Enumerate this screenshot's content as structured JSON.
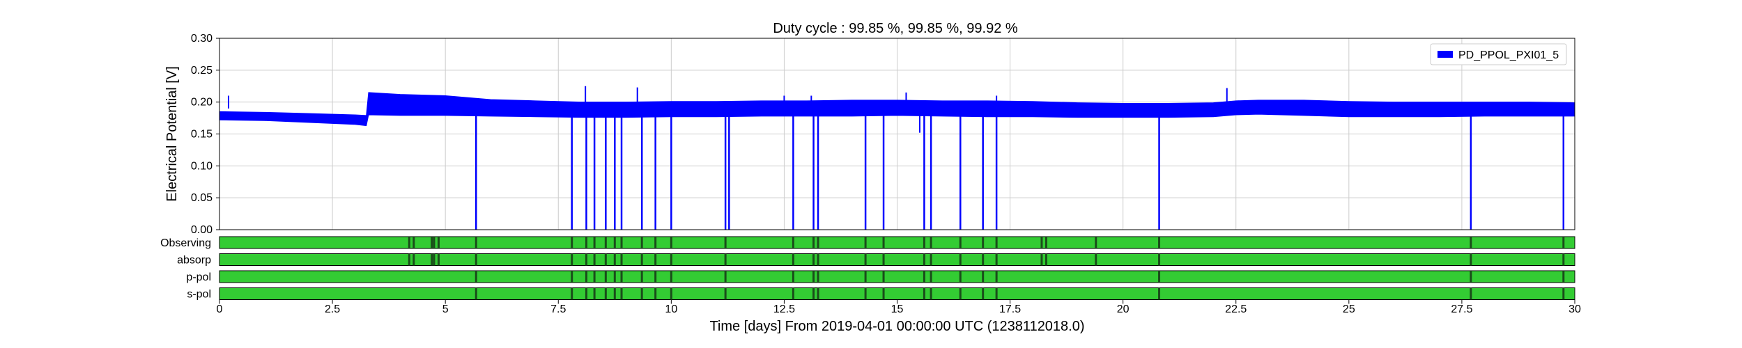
{
  "chart_data": {
    "type": "line",
    "title": "Duty cycle : 99.85 %, 99.85 %, 99.92 %",
    "xlabel": "Time [days] From 2019-04-01 00:00:00 UTC (1238112018.0)",
    "ylabel": "Electrical Potential [V]",
    "xlim": [
      0,
      30
    ],
    "ylim": [
      0,
      0.3
    ],
    "grid": true,
    "legend_position": "top-right",
    "x_ticks": [
      "0",
      "2.5",
      "5",
      "7.5",
      "10",
      "12.5",
      "15",
      "17.5",
      "20",
      "22.5",
      "25",
      "27.5",
      "30"
    ],
    "y_ticks": [
      "0.00",
      "0.05",
      "0.10",
      "0.15",
      "0.20",
      "0.25",
      "0.30"
    ],
    "colors": {
      "series": "#0000ff",
      "segment_on": "#33cc33",
      "segment_off": "#1a4d1a",
      "grid": "#cccccc"
    },
    "series": [
      {
        "name": "PD_PPOL_PXI01_5",
        "band": {
          "x": [
            0,
            1,
            2,
            3,
            3.25,
            3.3,
            4,
            5,
            6,
            7,
            8,
            9,
            10,
            11,
            12,
            13,
            14,
            15,
            16,
            17,
            18,
            19,
            20,
            21,
            22,
            22.5,
            23,
            24,
            25,
            26,
            27,
            28,
            29,
            30
          ],
          "upper": [
            0.185,
            0.184,
            0.182,
            0.18,
            0.179,
            0.215,
            0.212,
            0.21,
            0.204,
            0.202,
            0.2,
            0.2,
            0.201,
            0.201,
            0.202,
            0.202,
            0.203,
            0.203,
            0.202,
            0.202,
            0.201,
            0.199,
            0.198,
            0.198,
            0.199,
            0.202,
            0.203,
            0.203,
            0.201,
            0.2,
            0.2,
            0.2,
            0.2,
            0.199
          ],
          "lower": [
            0.172,
            0.171,
            0.168,
            0.165,
            0.163,
            0.18,
            0.179,
            0.179,
            0.178,
            0.177,
            0.176,
            0.176,
            0.177,
            0.177,
            0.178,
            0.178,
            0.178,
            0.179,
            0.178,
            0.177,
            0.177,
            0.176,
            0.176,
            0.176,
            0.177,
            0.18,
            0.181,
            0.179,
            0.177,
            0.177,
            0.177,
            0.178,
            0.178,
            0.178
          ]
        },
        "spikes": [
          {
            "x": 0.2,
            "y": 0.21
          },
          {
            "x": 8.1,
            "y": 0.225
          },
          {
            "x": 9.25,
            "y": 0.223
          },
          {
            "x": 12.5,
            "y": 0.21
          },
          {
            "x": 13.1,
            "y": 0.21
          },
          {
            "x": 15.2,
            "y": 0.215
          },
          {
            "x": 17.2,
            "y": 0.21
          },
          {
            "x": 22.3,
            "y": 0.222
          },
          {
            "x": 15.5,
            "y": 0.152
          },
          {
            "x": 14.7,
            "y": 0.16
          }
        ],
        "dropouts": [
          5.68,
          7.8,
          8.12,
          8.3,
          8.55,
          8.75,
          8.9,
          9.35,
          9.65,
          10.0,
          11.2,
          11.28,
          12.7,
          13.15,
          13.25,
          14.3,
          14.7,
          15.6,
          15.75,
          16.4,
          16.9,
          17.2,
          20.8,
          27.7,
          29.75
        ]
      }
    ],
    "segment_rows": [
      {
        "label": "Observing",
        "off": [
          4.2,
          4.3,
          4.7,
          4.75,
          4.85,
          5.68,
          7.8,
          8.12,
          8.3,
          8.55,
          8.75,
          8.9,
          9.35,
          9.65,
          10.0,
          11.2,
          12.7,
          13.15,
          13.25,
          14.3,
          14.7,
          15.6,
          15.75,
          16.4,
          16.9,
          17.2,
          18.2,
          18.3,
          19.4,
          20.8,
          27.7,
          29.75
        ]
      },
      {
        "label": "absorp",
        "off": [
          4.2,
          4.3,
          4.7,
          4.75,
          4.85,
          5.68,
          7.8,
          8.12,
          8.3,
          8.55,
          8.75,
          8.9,
          9.35,
          9.65,
          10.0,
          11.2,
          12.7,
          13.15,
          13.25,
          14.3,
          14.7,
          15.6,
          15.75,
          16.4,
          16.9,
          17.2,
          18.2,
          18.3,
          19.4,
          20.8,
          27.7,
          29.75
        ]
      },
      {
        "label": "p-pol",
        "off": [
          5.68,
          7.8,
          8.12,
          8.3,
          8.55,
          8.75,
          8.9,
          9.35,
          9.65,
          10.0,
          11.2,
          12.7,
          13.15,
          13.25,
          14.3,
          14.7,
          15.6,
          15.75,
          16.4,
          16.9,
          17.2,
          20.8,
          27.7,
          29.75
        ]
      },
      {
        "label": "s-pol",
        "off": [
          5.68,
          7.8,
          8.12,
          8.3,
          8.55,
          8.75,
          8.9,
          9.35,
          9.65,
          10.0,
          11.2,
          12.7,
          13.15,
          13.25,
          14.3,
          14.7,
          15.6,
          15.75,
          16.4,
          16.9,
          17.2,
          20.8,
          27.7,
          29.75
        ]
      }
    ]
  }
}
